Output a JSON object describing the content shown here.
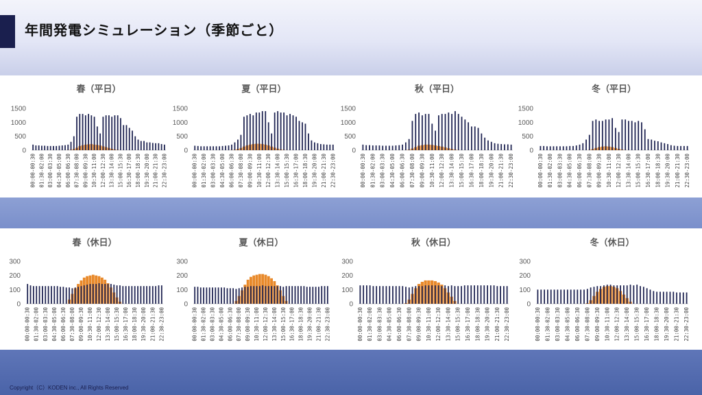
{
  "header": {
    "title": "年間発電シミュレーション（季節ごと）"
  },
  "footer": {
    "copyright": "Copyright（C）KODEN inc., All Rights Reserved"
  },
  "colors": {
    "consumption": "#1f2452",
    "generation": "#e8892a",
    "accent": "#1a1f4e"
  },
  "chart_data": [
    {
      "type": "bar",
      "title": "春（平日）",
      "ylim": [
        0,
        1500
      ],
      "yticks": [
        0,
        500,
        1000,
        1500
      ],
      "series": [
        {
          "values": [
            200,
            170,
            170,
            160,
            160,
            150,
            150,
            150,
            150,
            160,
            170,
            180,
            200,
            300,
            500,
            1200,
            1300,
            1300,
            1250,
            1300,
            1250,
            1200,
            850,
            600,
            1200,
            1250,
            1250,
            1200,
            1250,
            1250,
            1150,
            900,
            900,
            800,
            700,
            500,
            380,
            330,
            330,
            280,
            280,
            260,
            250,
            250,
            220,
            200
          ]
        },
        {
          "values": [
            0,
            0,
            0,
            0,
            0,
            0,
            0,
            0,
            0,
            0,
            0,
            0,
            5,
            15,
            40,
            90,
            150,
            180,
            200,
            210,
            220,
            200,
            190,
            170,
            140,
            110,
            80,
            50,
            25,
            10,
            0,
            0,
            0,
            0,
            0,
            0,
            0,
            0,
            0,
            0,
            0,
            0,
            0,
            0,
            0,
            0
          ]
        }
      ]
    },
    {
      "type": "bar",
      "title": "夏（平日）",
      "ylim": [
        0,
        1500
      ],
      "yticks": [
        0,
        500,
        1000,
        1500
      ],
      "series": [
        {
          "values": [
            160,
            150,
            140,
            140,
            140,
            140,
            140,
            140,
            140,
            150,
            160,
            170,
            200,
            280,
            380,
            550,
            1200,
            1250,
            1300,
            1250,
            1350,
            1350,
            1400,
            1400,
            1000,
            600,
            1350,
            1400,
            1350,
            1350,
            1250,
            1300,
            1250,
            1200,
            1050,
            1000,
            950,
            600,
            350,
            280,
            250,
            220,
            210,
            200,
            200,
            200
          ]
        },
        {
          "values": [
            0,
            0,
            0,
            0,
            0,
            0,
            0,
            0,
            0,
            0,
            0,
            0,
            5,
            15,
            40,
            80,
            130,
            170,
            200,
            220,
            230,
            230,
            220,
            200,
            170,
            130,
            90,
            55,
            25,
            10,
            0,
            0,
            0,
            0,
            0,
            0,
            0,
            0,
            0,
            0,
            0,
            0,
            0,
            0,
            0,
            0
          ]
        }
      ]
    },
    {
      "type": "bar",
      "title": "秋（平日）",
      "ylim": [
        0,
        1500
      ],
      "yticks": [
        0,
        500,
        1000,
        1500
      ],
      "series": [
        {
          "values": [
            200,
            180,
            180,
            170,
            170,
            170,
            160,
            160,
            160,
            160,
            170,
            180,
            200,
            280,
            400,
            1050,
            1300,
            1350,
            1250,
            1300,
            1300,
            950,
            700,
            1250,
            1300,
            1300,
            1350,
            1300,
            1400,
            1300,
            1200,
            1100,
            1000,
            850,
            850,
            800,
            600,
            450,
            350,
            300,
            250,
            230,
            220,
            210,
            210,
            200
          ]
        },
        {
          "values": [
            0,
            0,
            0,
            0,
            0,
            0,
            0,
            0,
            0,
            0,
            0,
            0,
            0,
            5,
            20,
            60,
            110,
            160,
            180,
            200,
            200,
            190,
            170,
            150,
            130,
            100,
            70,
            40,
            20,
            5,
            0,
            0,
            0,
            0,
            0,
            0,
            0,
            0,
            0,
            0,
            0,
            0,
            0,
            0,
            0,
            0
          ]
        }
      ]
    },
    {
      "type": "bar",
      "title": "冬（平日）",
      "ylim": [
        0,
        1500
      ],
      "yticks": [
        0,
        500,
        1000,
        1500
      ],
      "series": [
        {
          "values": [
            150,
            150,
            140,
            140,
            140,
            140,
            140,
            140,
            140,
            150,
            150,
            170,
            200,
            250,
            380,
            550,
            1050,
            1100,
            1050,
            1050,
            1100,
            1100,
            1150,
            800,
            650,
            1100,
            1100,
            1050,
            1050,
            1000,
            1050,
            1000,
            750,
            400,
            380,
            340,
            320,
            280,
            250,
            220,
            180,
            160,
            150,
            150,
            150,
            150
          ]
        },
        {
          "values": [
            0,
            0,
            0,
            0,
            0,
            0,
            0,
            0,
            0,
            0,
            0,
            0,
            0,
            0,
            0,
            10,
            40,
            80,
            110,
            130,
            140,
            130,
            110,
            80,
            50,
            20,
            5,
            0,
            0,
            0,
            0,
            0,
            0,
            0,
            0,
            0,
            0,
            0,
            0,
            0,
            0,
            0,
            0,
            0,
            0,
            0
          ]
        }
      ]
    },
    {
      "type": "bar",
      "title": "春（休日）",
      "ylim": [
        0,
        300
      ],
      "yticks": [
        0,
        100,
        200,
        300
      ],
      "series": [
        {
          "values": [
            140,
            130,
            125,
            125,
            125,
            125,
            125,
            125,
            125,
            125,
            125,
            120,
            120,
            115,
            115,
            110,
            115,
            120,
            125,
            130,
            135,
            140,
            140,
            140,
            145,
            140,
            140,
            140,
            140,
            135,
            130,
            130,
            125,
            125,
            125,
            125,
            125,
            125,
            125,
            125,
            125,
            125,
            125,
            125,
            130,
            130
          ]
        },
        {
          "values": [
            0,
            0,
            0,
            0,
            0,
            0,
            0,
            0,
            0,
            0,
            0,
            0,
            0,
            0,
            30,
            70,
            110,
            140,
            165,
            185,
            195,
            200,
            205,
            200,
            195,
            185,
            170,
            145,
            115,
            80,
            45,
            15,
            0,
            0,
            0,
            0,
            0,
            0,
            0,
            0,
            0,
            0,
            0,
            0,
            0,
            0
          ]
        }
      ]
    },
    {
      "type": "bar",
      "title": "夏（休日）",
      "ylim": [
        0,
        300
      ],
      "yticks": [
        0,
        100,
        200,
        300
      ],
      "series": [
        {
          "values": [
            120,
            120,
            115,
            115,
            115,
            115,
            115,
            115,
            115,
            115,
            115,
            110,
            110,
            110,
            105,
            110,
            115,
            120,
            120,
            125,
            125,
            125,
            125,
            130,
            125,
            125,
            125,
            125,
            125,
            125,
            120,
            125,
            125,
            125,
            125,
            125,
            125,
            125,
            120,
            120,
            120,
            120,
            120,
            125,
            125,
            125
          ]
        },
        {
          "values": [
            0,
            0,
            0,
            0,
            0,
            0,
            0,
            0,
            0,
            0,
            0,
            0,
            0,
            0,
            20,
            55,
            95,
            135,
            170,
            190,
            200,
            205,
            210,
            210,
            205,
            195,
            180,
            160,
            130,
            95,
            55,
            20,
            0,
            0,
            0,
            0,
            0,
            0,
            0,
            0,
            0,
            0,
            0,
            0,
            0,
            0
          ]
        }
      ]
    },
    {
      "type": "bar",
      "title": "秋（休日）",
      "ylim": [
        0,
        300
      ],
      "yticks": [
        0,
        100,
        200,
        300
      ],
      "series": [
        {
          "values": [
            130,
            130,
            130,
            130,
            125,
            125,
            125,
            125,
            125,
            125,
            125,
            125,
            125,
            125,
            120,
            115,
            120,
            125,
            125,
            125,
            130,
            130,
            130,
            130,
            130,
            125,
            130,
            125,
            130,
            125,
            125,
            125,
            130,
            130,
            130,
            130,
            130,
            130,
            130,
            130,
            130,
            130,
            125,
            125,
            125,
            125
          ]
        },
        {
          "values": [
            0,
            0,
            0,
            0,
            0,
            0,
            0,
            0,
            0,
            0,
            0,
            0,
            0,
            0,
            5,
            30,
            70,
            110,
            140,
            155,
            165,
            165,
            165,
            160,
            150,
            135,
            110,
            80,
            50,
            20,
            0,
            0,
            0,
            0,
            0,
            0,
            0,
            0,
            0,
            0,
            0,
            0,
            0,
            0,
            0,
            0
          ]
        }
      ]
    },
    {
      "type": "bar",
      "title": "冬（休日）",
      "ylim": [
        0,
        300
      ],
      "yticks": [
        0,
        100,
        200,
        300
      ],
      "series": [
        {
          "values": [
            100,
            100,
            100,
            100,
            100,
            100,
            100,
            100,
            100,
            100,
            100,
            100,
            100,
            100,
            100,
            105,
            115,
            120,
            125,
            125,
            130,
            135,
            135,
            130,
            130,
            130,
            130,
            130,
            135,
            130,
            135,
            125,
            120,
            110,
            100,
            90,
            85,
            85,
            85,
            85,
            85,
            85,
            80,
            80,
            80,
            80
          ]
        },
        {
          "values": [
            0,
            0,
            0,
            0,
            0,
            0,
            0,
            0,
            0,
            0,
            0,
            0,
            0,
            0,
            0,
            5,
            25,
            55,
            85,
            105,
            120,
            125,
            125,
            120,
            110,
            90,
            65,
            40,
            15,
            0,
            0,
            0,
            0,
            0,
            0,
            0,
            0,
            0,
            0,
            0,
            0,
            0,
            0,
            0,
            0,
            0
          ]
        }
      ]
    }
  ],
  "xlabels": [
    "00:00-00:30",
    "01:30-02:00",
    "03:00-03:30",
    "04:30-05:00",
    "06:00-06:30",
    "07:30-08:00",
    "09:00-09:30",
    "10:30-11:00",
    "12:00-12:30",
    "13:30-14:00",
    "15:00-15:30",
    "16:30-17:00",
    "18:00-18:30",
    "19:30-20:00",
    "21:00-21:30",
    "22:30-23:00"
  ]
}
